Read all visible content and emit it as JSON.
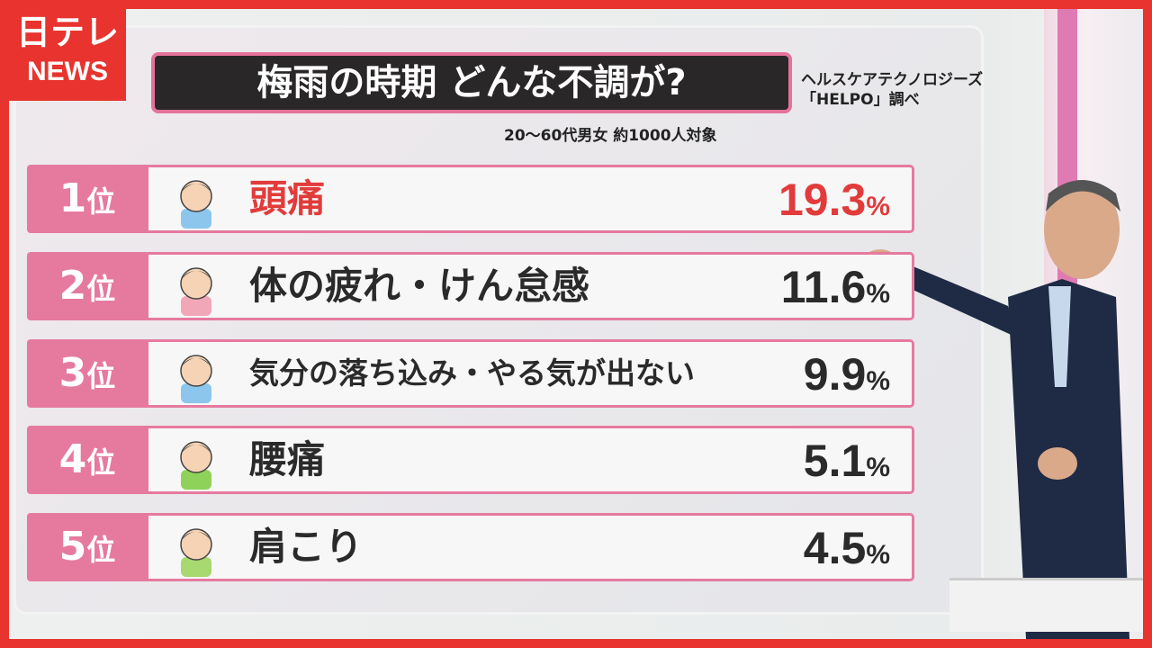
{
  "logo": {
    "line1": "日テレ",
    "line2": "NEWS"
  },
  "board": {
    "title": "梅雨の時期 どんな不調が?",
    "source_line1": "ヘルスケアテクノロジーズ",
    "source_line2": "「HELPO」調べ",
    "subtitle": "20～60代男女 約1000人対象",
    "rank_suffix": "位",
    "percent_sign": "%",
    "accent_color": "#e67a9e",
    "highlight_color": "#e23b3b",
    "items": [
      {
        "rank": "1",
        "label": "頭痛",
        "value": "19.3",
        "face": "headache-person-icon",
        "shirt": "#8cc6ec"
      },
      {
        "rank": "2",
        "label": "体の疲れ・けん怠感",
        "value": "11.6",
        "face": "tired-person-icon",
        "shirt": "#f2a7b8"
      },
      {
        "rank": "3",
        "label": "気分の落ち込み・やる気が出ない",
        "value": "9.9",
        "face": "depressed-person-icon",
        "shirt": "#8cc6ec"
      },
      {
        "rank": "4",
        "label": "腰痛",
        "value": "5.1",
        "face": "backache-person-icon",
        "shirt": "#8ed25a"
      },
      {
        "rank": "5",
        "label": "肩こり",
        "value": "4.5",
        "face": "stiff-shoulder-person-icon",
        "shirt": "#a8d870"
      }
    ]
  }
}
